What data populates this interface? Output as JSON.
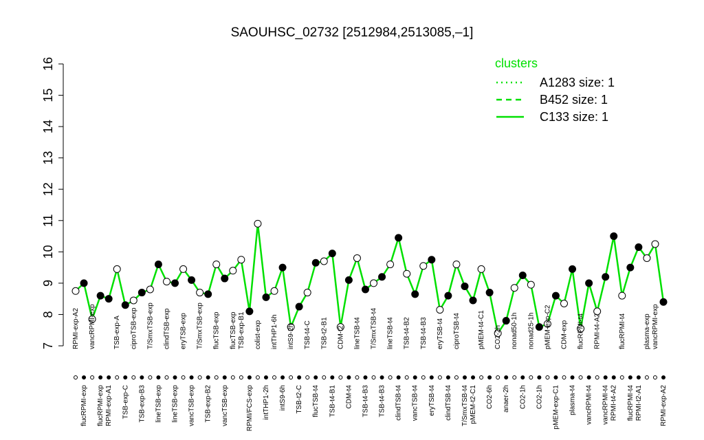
{
  "chart_data": {
    "type": "line",
    "title": "SAOUHSC_02732 [2512984,2513085,–1]",
    "categories": [
      "RPMI-exp-A2",
      "flucRPMI-exp",
      "vancRPMI-exp",
      "flucRPMI-exp",
      "RPMI-exp-A1",
      "TSB-exp-A",
      "TSB-exp-C",
      "ciproTSB-exp",
      "TSB-exp-B3",
      "T/SmxTSB-exp",
      "lineTSB-exp",
      "clindTSB-exp",
      "lineTSB-exp",
      "eryTSB-exp",
      "vancTSB-exp",
      "T/SmxTSB-exp",
      "TSB-exp-B2",
      "flucTSB-exp",
      "vancTSB-exp",
      "flucTSB-exp",
      "TSB-exp-B1",
      "RPMI/FCS-exp",
      "colist-exp",
      "intTHP1-2h",
      "intTHP1-6h",
      "intS9-6h",
      "intS9-2h",
      "TSB-t2-C",
      "TSB-t4-C",
      "flucTSB-t4",
      "TSB-t2-B1",
      "TSB-t4-B1",
      "CDM-t2",
      "CDM-t4",
      "lineTSB-t4",
      "TSB-t4-B3",
      "T/SmxTSB-t4",
      "TSB-t4-B3",
      "lineTSB-t4",
      "clindTSB-t4",
      "TSB-t4-B2",
      "vancTSB-t4",
      "TSB-t4-B3",
      "eryTSB-t4",
      "eryTSB-t4",
      "clindTSB-t4",
      "ciproTSB-t4",
      "T/SmxTSB-t4",
      "pMEM-t2-C1",
      "pMEM-t4-C1",
      "CO2-6h",
      "CO2-2h",
      "anaer-2h",
      "nonad50-1h",
      "CO2-1h",
      "nonad25-1h",
      "CO2-1h",
      "pMEM-exp-C2",
      "pMEM-exp-C1",
      "CDM-exp",
      "plasma-t4",
      "flucRPMI-t4",
      "vancRPMI-t4",
      "RPMI-t4-A2",
      "vancRPMI-t4",
      "RPMI-t4-A2",
      "flucRPMI-t4",
      "flucRPMI-t4",
      "RPMI-t2-A1",
      "plasma-exp",
      "vancRPMI-exp",
      "RPMI-exp-A2"
    ],
    "label_row": [
      "top",
      "bottom",
      "top",
      "bottom",
      "bottom",
      "top",
      "bottom",
      "top",
      "bottom",
      "top",
      "bottom",
      "top",
      "bottom",
      "top",
      "bottom",
      "top",
      "bottom",
      "top",
      "bottom",
      "top",
      "top",
      "bottom",
      "top",
      "bottom",
      "top",
      "bottom",
      "top",
      "bottom",
      "top",
      "bottom",
      "top",
      "bottom",
      "top",
      "bottom",
      "top",
      "bottom",
      "top",
      "bottom",
      "top",
      "bottom",
      "top",
      "bottom",
      "top",
      "bottom",
      "top",
      "bottom",
      "top",
      "bottom",
      "bottom",
      "top",
      "bottom",
      "top",
      "bottom",
      "top",
      "bottom",
      "top",
      "bottom",
      "top",
      "bottom",
      "top",
      "bottom",
      "top",
      "bottom",
      "top",
      "bottom",
      "bottom",
      "top",
      "bottom",
      "bottom",
      "top",
      "top",
      "bottom"
    ],
    "series": [
      {
        "name": "C133 size: 1",
        "color": "#00e000",
        "dash": "solid",
        "values": [
          8.75,
          9.0,
          7.85,
          8.6,
          8.5,
          9.45,
          8.3,
          8.45,
          8.7,
          8.8,
          9.6,
          9.05,
          9.0,
          9.45,
          9.1,
          8.7,
          8.65,
          9.6,
          9.15,
          9.4,
          9.75,
          8.1,
          10.9,
          8.55,
          8.75,
          9.5,
          7.6,
          8.25,
          8.7,
          9.65,
          9.7,
          9.95,
          7.6,
          9.1,
          9.8,
          8.8,
          9.0,
          9.2,
          9.6,
          10.45,
          9.3,
          8.65,
          9.55,
          9.75,
          8.15,
          8.6,
          9.6,
          8.9,
          8.45,
          9.45,
          8.7,
          7.4,
          7.8,
          8.85,
          9.25,
          8.95,
          7.6,
          7.7,
          8.6,
          8.35,
          9.45,
          7.55,
          9.0,
          8.1,
          9.2,
          10.5,
          8.6,
          9.5,
          10.15,
          9.8,
          10.25,
          8.4
        ]
      }
    ],
    "legend": {
      "title": "clusters",
      "entries": [
        {
          "name": "A1283 size: 1",
          "dash": "dotted"
        },
        {
          "name": "B452 size: 1",
          "dash": "dashed"
        },
        {
          "name": "C133 size: 1",
          "dash": "solid"
        }
      ]
    },
    "ylim": [
      7,
      16
    ],
    "yticks": [
      7,
      8,
      9,
      10,
      11,
      12,
      13,
      14,
      15,
      16
    ]
  }
}
